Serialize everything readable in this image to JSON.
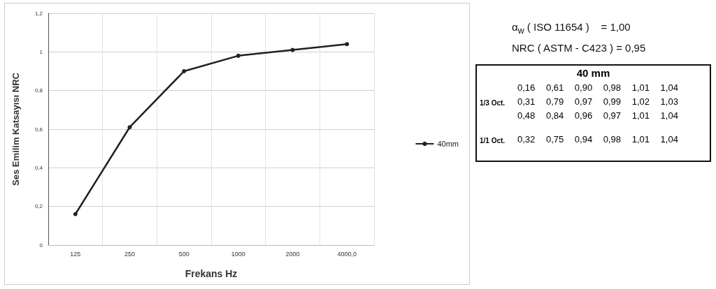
{
  "chart_data": [
    {
      "type": "line",
      "xlabel": "Frekans Hz",
      "ylabel": "Ses Emilim Katsayısı NRC",
      "categories": [
        "125",
        "250",
        "500",
        "1000",
        "2000",
        "4000,0"
      ],
      "series": [
        {
          "name": "40mm",
          "color": "#1c2418",
          "values": [
            0.16,
            0.61,
            0.9,
            0.98,
            1.01,
            1.04
          ]
        }
      ],
      "ylim": [
        0,
        1.2
      ],
      "yticks": [
        0,
        {
          "value": 0.2,
          "label": "0,2"
        },
        {
          "value": 0.4,
          "label": "0,4"
        },
        {
          "value": 0.6,
          "label": "0,6"
        },
        {
          "value": 0.8,
          "label": "0,8"
        },
        1,
        {
          "value": 1.2,
          "label": "1,2"
        }
      ],
      "grid": true,
      "legend": "right",
      "marker": "circle",
      "line_style": "solid"
    },
    {
      "type": "other",
      "title": "40 mm",
      "annotations": [
        "α$_{w}$ ( ISO 11654 )    = 1,00",
        "NRC ( ASTM - C423 ) = 0,95",
        "1/3 Oct.",
        "0,16 0,61 0,90 0,98 1,01 1,04",
        "0,31 0,79 0,97 0,99 1,02 1,03",
        "0,48 0,84 0,96 0,97 1,01 1,04",
        "1/1 Oct.",
        "0,32 0,75 0,94 0,98 1,01 1,04"
      ]
    }
  ]
}
